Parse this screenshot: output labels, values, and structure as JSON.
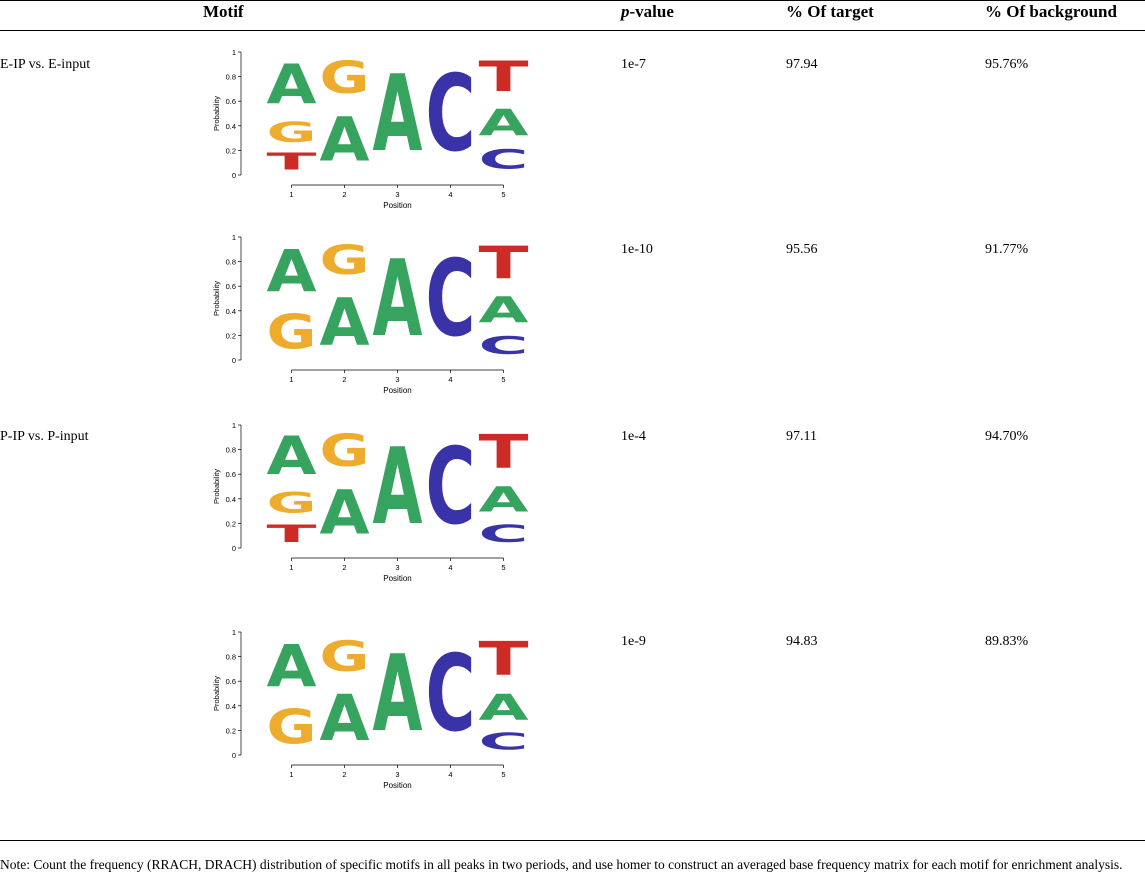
{
  "header": {
    "motif": "Motif",
    "pvalue_italic": "p",
    "pvalue_rest": "-value",
    "target": "% Of target",
    "background": "% Of background"
  },
  "axis": {
    "ylabel": "Probability",
    "xlabel": "Position",
    "yticks": [
      "1",
      "0.8",
      "0.6",
      "0.4",
      "0.2",
      "0"
    ],
    "xticks": [
      "1",
      "2",
      "3",
      "4",
      "5"
    ]
  },
  "colors": {
    "A": "#36a35e",
    "C": "#3a33a8",
    "G": "#eeac2f",
    "T": "#cd2b26"
  },
  "rows": [
    {
      "group": "E-IP vs. E-input",
      "pvalue": "1e-7",
      "target": "97.94",
      "background": "95.76%",
      "motif": [
        [
          [
            "A",
            0.52
          ],
          [
            "G",
            0.26
          ],
          [
            "T",
            0.22
          ]
        ],
        [
          [
            "G",
            0.42
          ],
          [
            "A",
            0.58
          ]
        ],
        [
          [
            "A",
            1.0
          ]
        ],
        [
          [
            "C",
            1.0
          ]
        ],
        [
          [
            "T",
            0.4
          ],
          [
            "A",
            0.35
          ],
          [
            "C",
            0.25
          ]
        ]
      ]
    },
    {
      "group": "",
      "pvalue": "1e-10",
      "target": "95.56",
      "background": "91.77%",
      "motif": [
        [
          [
            "A",
            0.55
          ],
          [
            "G",
            0.45
          ]
        ],
        [
          [
            "G",
            0.38
          ],
          [
            "A",
            0.62
          ]
        ],
        [
          [
            "A",
            1.0
          ]
        ],
        [
          [
            "C",
            1.0
          ]
        ],
        [
          [
            "T",
            0.42
          ],
          [
            "A",
            0.34
          ],
          [
            "C",
            0.24
          ]
        ]
      ]
    },
    {
      "group": "P-IP vs. P-input",
      "pvalue": "1e-4",
      "target": "97.11",
      "background": "94.70%",
      "motif": [
        [
          [
            "A",
            0.5
          ],
          [
            "G",
            0.27
          ],
          [
            "T",
            0.23
          ]
        ],
        [
          [
            "G",
            0.42
          ],
          [
            "A",
            0.58
          ]
        ],
        [
          [
            "A",
            1.0
          ]
        ],
        [
          [
            "C",
            1.0
          ]
        ],
        [
          [
            "T",
            0.44
          ],
          [
            "A",
            0.33
          ],
          [
            "C",
            0.23
          ]
        ]
      ]
    },
    {
      "group": "",
      "pvalue": "1e-9",
      "target": "94.83",
      "background": "89.83%",
      "motif": [
        [
          [
            "A",
            0.55
          ],
          [
            "G",
            0.45
          ]
        ],
        [
          [
            "G",
            0.4
          ],
          [
            "A",
            0.6
          ]
        ],
        [
          [
            "A",
            1.0
          ]
        ],
        [
          [
            "C",
            1.0
          ]
        ],
        [
          [
            "T",
            0.44
          ],
          [
            "A",
            0.34
          ],
          [
            "C",
            0.22
          ]
        ]
      ]
    }
  ],
  "note": "Note: Count the frequency (RRACH, DRACH) distribution of specific motifs in all peaks in two periods, and use homer to construct an averaged base frequency matrix for each motif for enrichment analysis."
}
